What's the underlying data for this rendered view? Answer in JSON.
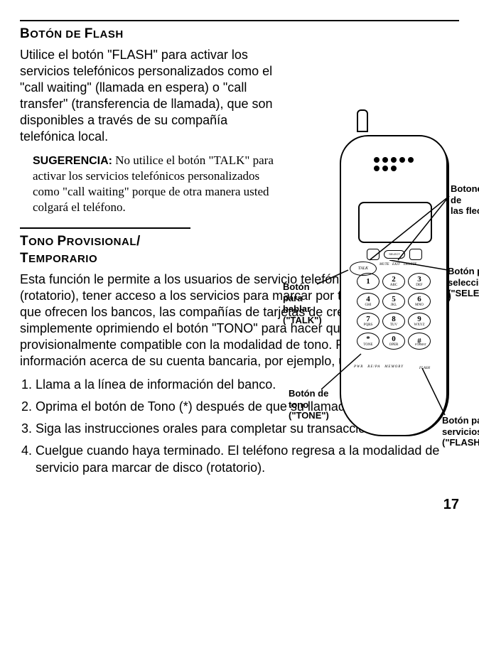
{
  "titles": {
    "flash": {
      "big": "B",
      "t1": "OTÓN DE ",
      "big2": "F",
      "t2": "LASH"
    },
    "tono": {
      "big": "T",
      "t1": "ONO ",
      "big2": "P",
      "t2": "ROVISIONAL",
      "tail": "/",
      "line2big": "T",
      "line2": "EMPORARIO"
    }
  },
  "flash_intro": "Utilice el botón \"FLASH\" para activar los servicios telefónicos personalizados como el \"call waiting\" (llamada en espera) o \"call transfer\" (transferencia de llamada), que son disponibles a través de su compañía telefónica local.",
  "tip_label": "SUGERENCIA:",
  "tip_text": " No utilice el botón \"TALK\" para activar los servicios telefónicos personalizados como \"call waiting\" porque de otra manera usted colgará el teléfono.",
  "tono_body": "Esta función le permite a los usuarios de servicio telefónico de disco (rotatorio), tener acceso a los servicios para marcar por teclado (touch-tone) que ofrecen los bancos, las compañías de tarjetas de crédito, etc. simplemente oprimiendo el botón \"TONO\" para hacer que el teléfono sea provisionalmente compatible con la modalidad de tono. Para obtener información acerca de su cuenta bancaria, por ejemplo, usted:",
  "steps": [
    "Llama a la línea de información del banco.",
    "Oprima el botón de Tono (*) después de que su llamada es contestada.",
    "Siga las instrucciones orales para completar su transacción.",
    "Cuelgue cuando haya terminado. El teléfono regresa a la modalidad de servicio para marcar de disco (rotatorio)."
  ],
  "page": "17",
  "callouts": {
    "talk": "Botón\npara\nhablar\n(\"TALK\")",
    "arrows": "Botones de\nlas flechas",
    "select": "Botón para\nseleccionar\n(\"SELECT\")",
    "tone": "Botón de\ntono\n(\"TONE\")",
    "flash": "Botón para\nservicios\n(\"FLASH\")"
  },
  "keypad": [
    {
      "n": "1",
      "l": ""
    },
    {
      "n": "2",
      "l": "ABC"
    },
    {
      "n": "3",
      "l": "DEF"
    },
    {
      "n": "4",
      "l": "GHI"
    },
    {
      "n": "5",
      "l": "JKL"
    },
    {
      "n": "6",
      "l": "MNO"
    },
    {
      "n": "7",
      "l": "PQRS"
    },
    {
      "n": "8",
      "l": "TUV"
    },
    {
      "n": "9",
      "l": "WXYZ"
    },
    {
      "n": "*",
      "l": "TONE"
    },
    {
      "n": "0",
      "l": "OPER"
    },
    {
      "n": "#",
      "l": ""
    }
  ],
  "phone_labels": {
    "talk": "TALK",
    "select": "SELECT",
    "mute": "MUTE",
    "exit": "EXIT",
    "delete": "DELETE",
    "format": "FORMAT",
    "flash": "FLASH",
    "pwr": "PWR",
    "repa": "RE/PA",
    "memory": "MEMORY"
  }
}
